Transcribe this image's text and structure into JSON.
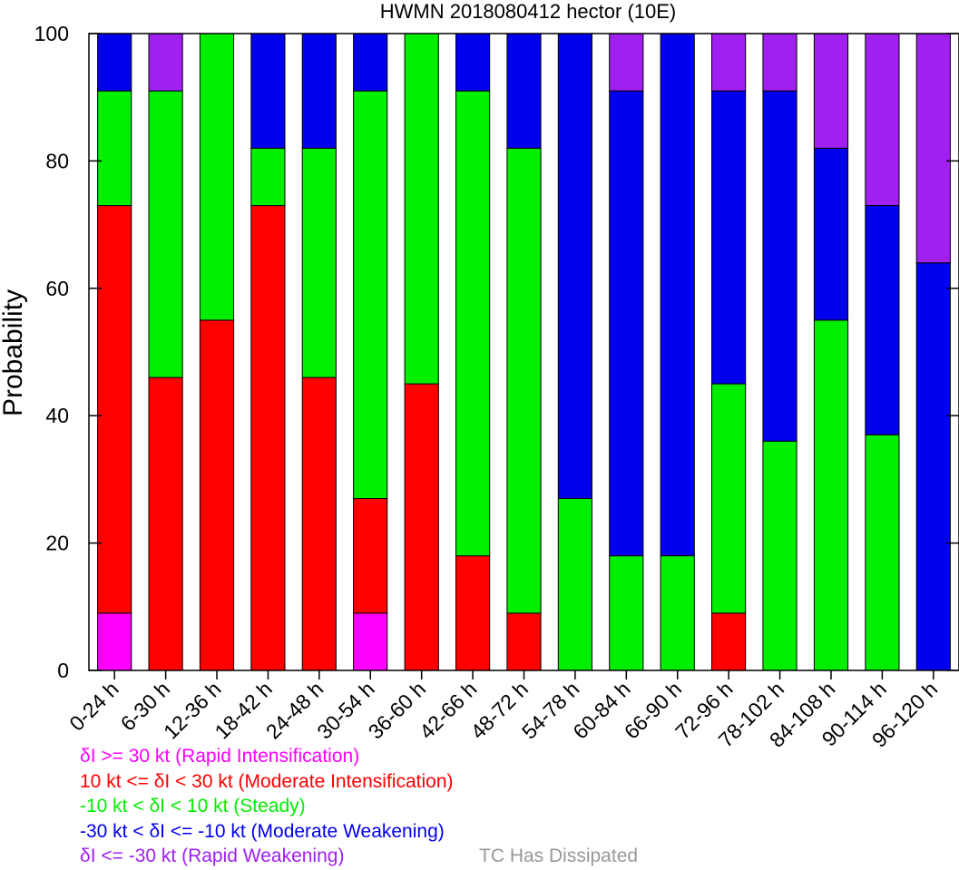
{
  "chart_data": {
    "type": "bar",
    "stacked": true,
    "title": "HWMN 2018080412 hector (10E)",
    "xlabel": "",
    "ylabel": "Probability",
    "ylim": [
      0,
      100
    ],
    "yticks": [
      "0",
      "20",
      "40",
      "60",
      "80",
      "100"
    ],
    "categories": [
      "0-24 h",
      "6-30 h",
      "12-36 h",
      "18-42 h",
      "24-48 h",
      "30-54 h",
      "36-60 h",
      "42-66 h",
      "48-72 h",
      "54-78 h",
      "60-84 h",
      "66-90 h",
      "72-96 h",
      "78-102 h",
      "84-108 h",
      "90-114 h",
      "96-120 h"
    ],
    "series": [
      {
        "name": "δI >= 30 kt (Rapid Intensification)",
        "color": "#ff00ff",
        "values": [
          9,
          0,
          0,
          0,
          0,
          9,
          0,
          0,
          0,
          0,
          0,
          0,
          0,
          0,
          0,
          0,
          0
        ]
      },
      {
        "name": "10 kt <= δI < 30 kt (Moderate Intensification)",
        "color": "#ff0000",
        "values": [
          64,
          46,
          55,
          73,
          46,
          18,
          45,
          18,
          9,
          0,
          0,
          0,
          9,
          0,
          0,
          0,
          0
        ]
      },
      {
        "name": "-10 kt < δI < 10 kt (Steady)",
        "color": "#00ee00",
        "values": [
          18,
          45,
          45,
          9,
          36,
          64,
          55,
          73,
          73,
          27,
          18,
          18,
          36,
          36,
          55,
          37,
          0
        ]
      },
      {
        "name": "-30 kt < δI <= -10 kt (Moderate Weakening)",
        "color": "#0000ee",
        "values": [
          9,
          0,
          0,
          18,
          18,
          9,
          0,
          9,
          18,
          73,
          73,
          82,
          46,
          55,
          27,
          36,
          64
        ]
      },
      {
        "name": "δI <= -30 kt (Rapid Weakening)",
        "color": "#a020f0",
        "values": [
          0,
          9,
          0,
          0,
          0,
          0,
          0,
          0,
          0,
          0,
          9,
          0,
          9,
          9,
          18,
          27,
          36
        ]
      }
    ]
  },
  "legend": {
    "items": [
      {
        "label": "δI >= 30 kt (Rapid Intensification)",
        "color": "#ff00ff"
      },
      {
        "label": "10 kt <= δI < 30 kt (Moderate Intensification)",
        "color": "#ff0000"
      },
      {
        "label": "-10 kt < δI < 10 kt (Steady)",
        "color": "#00ee00"
      },
      {
        "label": "-30 kt < δI <= -10 kt (Moderate Weakening)",
        "color": "#0000ee"
      },
      {
        "label": "δI <= -30 kt (Rapid Weakening)",
        "color": "#a020f0"
      }
    ],
    "dissipated": {
      "label": "TC Has Dissipated",
      "color": "#999999"
    }
  }
}
